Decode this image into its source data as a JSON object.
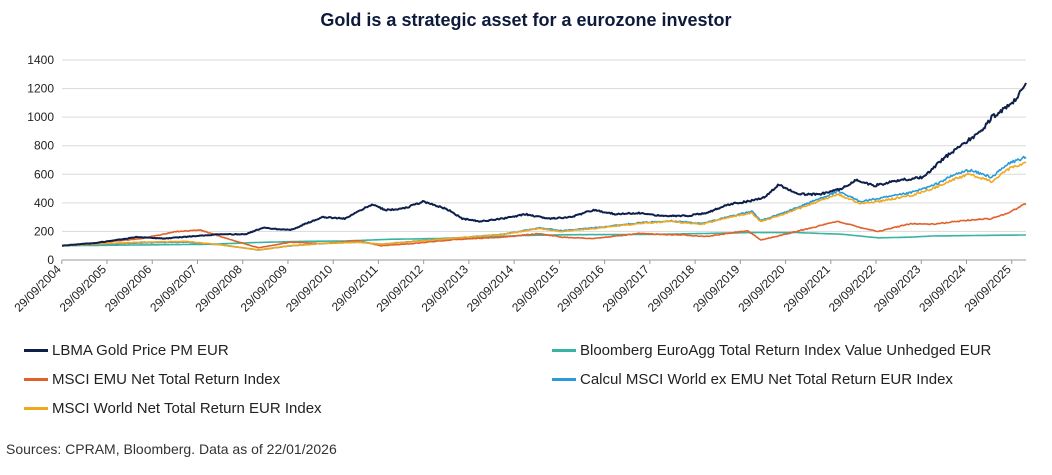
{
  "colors": {
    "gold": "#0d1f4a",
    "euroagg": "#3bb3a3",
    "emu": "#e0622a",
    "worldexemu": "#2a9bd8",
    "world": "#f0a81e",
    "grid": "#d9d9d9",
    "axis": "#999999"
  },
  "chart_data": {
    "type": "line",
    "title": "Gold is a strategic asset for a eurozone investor",
    "xlabel": "",
    "ylabel": "",
    "ylim": [
      0,
      1400
    ],
    "yticks": [
      0,
      200,
      400,
      600,
      800,
      1000,
      1200,
      1400
    ],
    "x_start_year": 2004.75,
    "x_end_year": 2026.06,
    "xtick_labels": [
      "29/09/2004",
      "29/09/2005",
      "29/09/2006",
      "29/09/2007",
      "29/09/2008",
      "29/09/2009",
      "29/09/2010",
      "29/09/2011",
      "29/09/2012",
      "29/09/2013",
      "29/09/2014",
      "29/09/2015",
      "29/09/2016",
      "29/09/2017",
      "29/09/2018",
      "29/09/2019",
      "29/09/2020",
      "29/09/2021",
      "29/09/2022",
      "29/09/2023",
      "29/09/2024",
      "29/09/2025"
    ],
    "series": [
      {
        "key": "euroagg",
        "name": "Bloomberg EuroAgg Total Return Index Value Unhedged EUR",
        "points": [
          [
            2004.75,
            100
          ],
          [
            2006,
            104
          ],
          [
            2008,
            110
          ],
          [
            2009,
            122
          ],
          [
            2010,
            130
          ],
          [
            2011,
            133
          ],
          [
            2012,
            145
          ],
          [
            2013,
            150
          ],
          [
            2014,
            160
          ],
          [
            2015,
            172
          ],
          [
            2016,
            177
          ],
          [
            2017,
            178
          ],
          [
            2018,
            180
          ],
          [
            2019,
            186
          ],
          [
            2020,
            192
          ],
          [
            2021,
            192
          ],
          [
            2022,
            180
          ],
          [
            2022.8,
            155
          ],
          [
            2023.5,
            160
          ],
          [
            2024,
            168
          ],
          [
            2025,
            172
          ],
          [
            2026.06,
            175
          ]
        ]
      },
      {
        "key": "emu",
        "name": "MSCI EMU Net Total Return Index",
        "points": [
          [
            2004.75,
            100
          ],
          [
            2005.5,
            120
          ],
          [
            2006.5,
            150
          ],
          [
            2007.3,
            200
          ],
          [
            2007.8,
            210
          ],
          [
            2008.5,
            140
          ],
          [
            2009.1,
            85
          ],
          [
            2009.8,
            125
          ],
          [
            2010.5,
            115
          ],
          [
            2011.3,
            135
          ],
          [
            2011.8,
            100
          ],
          [
            2012.5,
            115
          ],
          [
            2013.5,
            145
          ],
          [
            2014.5,
            160
          ],
          [
            2015.3,
            185
          ],
          [
            2015.8,
            160
          ],
          [
            2016.5,
            150
          ],
          [
            2017.5,
            185
          ],
          [
            2018.5,
            175
          ],
          [
            2019,
            165
          ],
          [
            2019.9,
            205
          ],
          [
            2020.2,
            140
          ],
          [
            2020.8,
            185
          ],
          [
            2021.5,
            240
          ],
          [
            2021.9,
            270
          ],
          [
            2022.5,
            220
          ],
          [
            2022.8,
            200
          ],
          [
            2023.5,
            255
          ],
          [
            2024,
            250
          ],
          [
            2024.8,
            280
          ],
          [
            2025.3,
            290
          ],
          [
            2025.7,
            335
          ],
          [
            2026.06,
            395
          ]
        ]
      },
      {
        "key": "worldexemu",
        "name": "Calcul MSCI World ex EMU Net Total Return EUR Index",
        "points": [
          [
            2004.75,
            100
          ],
          [
            2005.5,
            110
          ],
          [
            2006.5,
            120
          ],
          [
            2007.5,
            125
          ],
          [
            2008.3,
            105
          ],
          [
            2009.1,
            70
          ],
          [
            2009.8,
            100
          ],
          [
            2010.5,
            115
          ],
          [
            2011.3,
            125
          ],
          [
            2011.8,
            110
          ],
          [
            2012.5,
            130
          ],
          [
            2013.5,
            155
          ],
          [
            2014.5,
            180
          ],
          [
            2015.3,
            225
          ],
          [
            2015.8,
            205
          ],
          [
            2016.5,
            225
          ],
          [
            2017.5,
            260
          ],
          [
            2018.2,
            275
          ],
          [
            2018.9,
            255
          ],
          [
            2019.5,
            305
          ],
          [
            2020,
            340
          ],
          [
            2020.2,
            275
          ],
          [
            2020.7,
            330
          ],
          [
            2021.5,
            430
          ],
          [
            2021.9,
            480
          ],
          [
            2022.4,
            410
          ],
          [
            2022.8,
            430
          ],
          [
            2023.5,
            470
          ],
          [
            2024,
            520
          ],
          [
            2024.5,
            600
          ],
          [
            2024.8,
            630
          ],
          [
            2025.3,
            580
          ],
          [
            2025.7,
            680
          ],
          [
            2026.06,
            720
          ]
        ]
      },
      {
        "key": "world",
        "name": "MSCI World Net Total Return EUR Index",
        "points": [
          [
            2004.75,
            100
          ],
          [
            2005.5,
            112
          ],
          [
            2006.5,
            125
          ],
          [
            2007.5,
            130
          ],
          [
            2008.3,
            105
          ],
          [
            2009.1,
            70
          ],
          [
            2009.8,
            100
          ],
          [
            2010.5,
            115
          ],
          [
            2011.3,
            125
          ],
          [
            2011.8,
            110
          ],
          [
            2012.5,
            128
          ],
          [
            2013.5,
            155
          ],
          [
            2014.5,
            178
          ],
          [
            2015.3,
            220
          ],
          [
            2015.8,
            200
          ],
          [
            2016.5,
            220
          ],
          [
            2017.5,
            255
          ],
          [
            2018.2,
            270
          ],
          [
            2018.9,
            250
          ],
          [
            2019.5,
            300
          ],
          [
            2020,
            330
          ],
          [
            2020.2,
            268
          ],
          [
            2020.7,
            320
          ],
          [
            2021.5,
            415
          ],
          [
            2021.9,
            460
          ],
          [
            2022.4,
            395
          ],
          [
            2022.8,
            410
          ],
          [
            2023.5,
            450
          ],
          [
            2024,
            500
          ],
          [
            2024.5,
            570
          ],
          [
            2024.8,
            600
          ],
          [
            2025.3,
            550
          ],
          [
            2025.7,
            640
          ],
          [
            2026.06,
            680
          ]
        ]
      },
      {
        "key": "gold",
        "name": "LBMA Gold Price PM EUR",
        "points": [
          [
            2004.75,
            100
          ],
          [
            2005.5,
            120
          ],
          [
            2006.4,
            160
          ],
          [
            2007,
            150
          ],
          [
            2007.8,
            170
          ],
          [
            2008.3,
            180
          ],
          [
            2008.8,
            180
          ],
          [
            2009.2,
            225
          ],
          [
            2009.8,
            210
          ],
          [
            2010.5,
            300
          ],
          [
            2011,
            290
          ],
          [
            2011.6,
            390
          ],
          [
            2011.9,
            350
          ],
          [
            2012.3,
            360
          ],
          [
            2012.75,
            410
          ],
          [
            2013.3,
            350
          ],
          [
            2013.6,
            290
          ],
          [
            2014,
            270
          ],
          [
            2014.5,
            290
          ],
          [
            2015,
            320
          ],
          [
            2015.5,
            290
          ],
          [
            2016,
            300
          ],
          [
            2016.5,
            350
          ],
          [
            2017,
            320
          ],
          [
            2017.5,
            330
          ],
          [
            2018,
            310
          ],
          [
            2018.6,
            310
          ],
          [
            2019,
            330
          ],
          [
            2019.5,
            390
          ],
          [
            2019.9,
            410
          ],
          [
            2020.3,
            440
          ],
          [
            2020.6,
            530
          ],
          [
            2021,
            460
          ],
          [
            2021.5,
            460
          ],
          [
            2022,
            500
          ],
          [
            2022.3,
            560
          ],
          [
            2022.7,
            520
          ],
          [
            2023.3,
            560
          ],
          [
            2023.8,
            580
          ],
          [
            2024.2,
            700
          ],
          [
            2024.6,
            800
          ],
          [
            2024.9,
            860
          ],
          [
            2025.1,
            910
          ],
          [
            2025.3,
            1000
          ],
          [
            2025.6,
            1060
          ],
          [
            2025.8,
            1110
          ],
          [
            2026.06,
            1240
          ]
        ]
      }
    ]
  },
  "legend": [
    {
      "key": "gold",
      "label": "LBMA Gold Price PM EUR"
    },
    {
      "key": "euroagg",
      "label": "Bloomberg EuroAgg Total Return Index Value Unhedged EUR"
    },
    {
      "key": "emu",
      "label": "MSCI EMU Net Total Return Index"
    },
    {
      "key": "worldexemu",
      "label": "Calcul MSCI World ex EMU Net Total Return EUR Index"
    },
    {
      "key": "world",
      "label": "MSCI World Net Total Return EUR Index"
    }
  ],
  "source": "Sources: CPRAM, Bloomberg. Data as of 22/01/2026"
}
